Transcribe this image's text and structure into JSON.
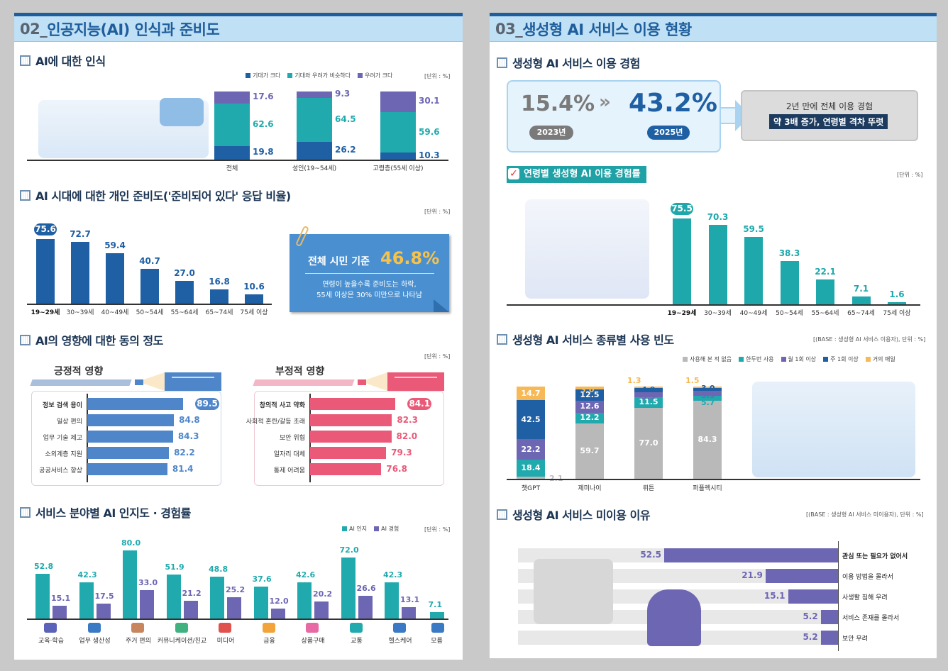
{
  "left_panel": {
    "section_number": "02_",
    "section_title": "인공지능(AI) 인식과 준비도",
    "perception": {
      "title": "AI에 대한 인식",
      "legend": [
        {
          "label": "기대가 크다",
          "color": "#1f5fa3"
        },
        {
          "label": "기대와 우려가 비슷하다",
          "color": "#20aaae"
        },
        {
          "label": "우려가 크다",
          "color": "#6d66b3"
        }
      ],
      "unit": "[단위 : %]"
    },
    "readiness": {
      "title": "AI 시대에 대한 개인 준비도('준비되어 있다' 응답 비율)",
      "unit": "[단위 : %]",
      "callout": {
        "label": "전체 시민 기준",
        "value": "46.8%",
        "desc_line1": "연령이 높을수록 준비도는 하락,",
        "desc_line2": "55세 이상은 30% 미만으로 나타남"
      }
    },
    "impact": {
      "title": "AI의 영향에 대한 동의 정도",
      "unit": "[단위 : %]",
      "positive_title": "긍정적 영향",
      "negative_title": "부정적 영향"
    },
    "service_fields": {
      "title": "서비스 분야별 AI 인지도 · 경험률",
      "legend": [
        {
          "label": "AI 인지",
          "color": "#20aaae"
        },
        {
          "label": "AI 경험",
          "color": "#6d66b3"
        }
      ],
      "unit": "[단위 : %]"
    }
  },
  "right_panel": {
    "section_number": "03_",
    "section_title": "생성형 AI 서비스 이용 현황",
    "experience": {
      "title": "생성형 AI 서비스 이용 경험",
      "before_value": "15.4%",
      "before_year": "2023년",
      "after_value": "43.2%",
      "after_year": "2025년",
      "summary_line1": "2년 만에 전체 이용 경험",
      "summary_line2": "약 3배 증가, 연령별 격차 뚜렷"
    },
    "age_usage": {
      "title": "연령별 생성형 AI 이용 경험률",
      "unit": "[단위 : %]"
    },
    "service_frequency": {
      "title": "생성형 AI 서비스 종류별 사용 빈도",
      "base": "[(BASE : 생성형 AI 서비스 이용자), 단위 : %]",
      "legend": [
        {
          "label": "사용해 본 적 없음",
          "color": "#b9b9b9"
        },
        {
          "label": "한두번 사용",
          "color": "#20aaae"
        },
        {
          "label": "월 1회 이상",
          "color": "#6d66b3"
        },
        {
          "label": "주 1회 이상",
          "color": "#1f5fa3"
        },
        {
          "label": "거의 매일",
          "color": "#f7b955"
        }
      ]
    },
    "non_use": {
      "title": "생성형 AI 서비스 미이용 이유",
      "base": "[(BASE : 생성형 AI 서비스 미이용자), 단위 : %]"
    }
  },
  "chart_data": [
    {
      "type": "bar",
      "stacked": true,
      "title": "AI에 대한 인식",
      "categories": [
        "전체",
        "성인(19~54세)",
        "고령층(55세 이상)"
      ],
      "series": [
        {
          "name": "기대가 크다",
          "values": [
            19.8,
            26.2,
            10.3
          ]
        },
        {
          "name": "기대와 우려가 비슷하다",
          "values": [
            62.6,
            64.5,
            59.6
          ]
        },
        {
          "name": "우려가 크다",
          "values": [
            17.6,
            9.3,
            30.1
          ]
        }
      ],
      "ylabel": "%"
    },
    {
      "type": "bar",
      "title": "AI 시대에 대한 개인 준비도('준비되어 있다' 응답 비율)",
      "categories": [
        "19~29세",
        "30~39세",
        "40~49세",
        "50~54세",
        "55~64세",
        "65~74세",
        "75세 이상"
      ],
      "values": [
        75.6,
        72.7,
        59.4,
        40.7,
        27.0,
        16.8,
        10.6
      ],
      "highlight": "19~29세",
      "ylabel": "%"
    },
    {
      "type": "bar",
      "orientation": "horizontal",
      "title": "AI의 영향에 대한 동의 정도 - 긍정적 영향",
      "categories": [
        "정보 검색 용이",
        "일상 편의",
        "업무 기술 제고",
        "소외계층 지원",
        "공공서비스 향상"
      ],
      "values": [
        89.5,
        84.8,
        84.3,
        82.2,
        81.4
      ]
    },
    {
      "type": "bar",
      "orientation": "horizontal",
      "title": "AI의 영향에 대한 동의 정도 - 부정적 영향",
      "categories": [
        "창의적 사고 약화",
        "사회적 혼란/갈등 초래",
        "보안 위협",
        "일자리 대체",
        "통제 어려움"
      ],
      "values": [
        84.1,
        82.3,
        82.0,
        79.3,
        76.8
      ]
    },
    {
      "type": "bar",
      "title": "서비스 분야별 AI 인지도 · 경험률",
      "categories": [
        "교육·학습",
        "업무 생산성",
        "주거 편의",
        "커뮤니케이션/친교",
        "미디어",
        "금융",
        "상품구매",
        "교통",
        "헬스케어",
        "모름"
      ],
      "series": [
        {
          "name": "AI 인지",
          "values": [
            52.8,
            42.3,
            80.0,
            51.9,
            48.8,
            37.6,
            42.6,
            72.0,
            42.3,
            7.1
          ]
        },
        {
          "name": "AI 경험",
          "values": [
            15.1,
            17.5,
            33.0,
            21.2,
            25.2,
            12.0,
            20.2,
            26.6,
            13.1,
            null
          ]
        }
      ]
    },
    {
      "type": "bar",
      "title": "연령별 생성형 AI 이용 경험률",
      "categories": [
        "19~29세",
        "30~39세",
        "40~49세",
        "50~54세",
        "55~64세",
        "65~74세",
        "75세 이상"
      ],
      "values": [
        75.5,
        70.3,
        59.5,
        38.3,
        22.1,
        7.1,
        1.6
      ],
      "highlight": "19~29세"
    },
    {
      "type": "bar",
      "stacked": true,
      "title": "생성형 AI 서비스 종류별 사용 빈도",
      "categories": [
        "챗GPT",
        "제미나이",
        "뤼튼",
        "퍼플렉시티"
      ],
      "series": [
        {
          "name": "사용해 본 적 없음",
          "values": [
            2.1,
            59.7,
            77.0,
            84.3
          ]
        },
        {
          "name": "한두번 사용",
          "values": [
            18.4,
            12.2,
            11.5,
            5.7
          ]
        },
        {
          "name": "월 1회 이상",
          "values": [
            22.2,
            12.6,
            5.3,
            5.5
          ]
        },
        {
          "name": "주 1회 이상",
          "values": [
            42.5,
            12.5,
            4.9,
            3.0
          ]
        },
        {
          "name": "거의 매일",
          "values": [
            14.7,
            3.0,
            1.3,
            1.5
          ]
        }
      ]
    },
    {
      "type": "bar",
      "orientation": "horizontal",
      "title": "생성형 AI 서비스 미이용 이유",
      "categories": [
        "관심 또는 필요가 없어서",
        "이용 방법을 몰라서",
        "사생활 침해 우려",
        "서비스 존재를 몰라서",
        "보안 우려"
      ],
      "values": [
        52.5,
        21.9,
        15.1,
        5.2,
        5.2
      ]
    }
  ]
}
